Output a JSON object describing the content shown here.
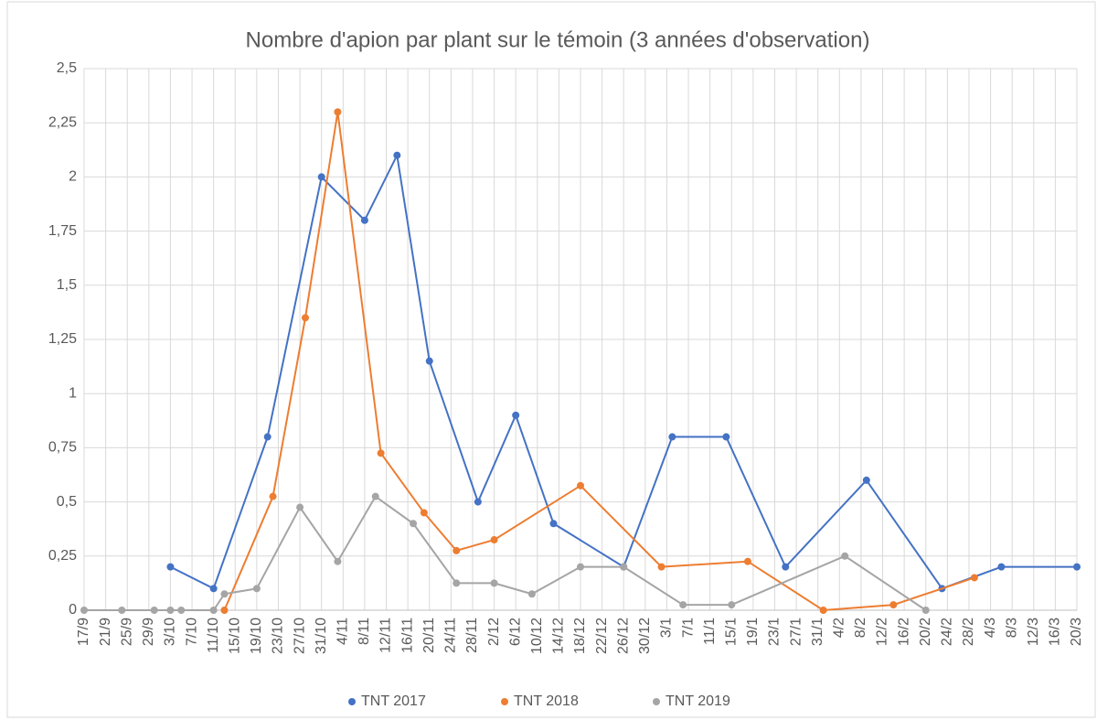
{
  "chart_data": {
    "type": "line",
    "title": "Nombre d'apion par plant sur le témoin (3 années d'observation)",
    "categories": [
      "17/9",
      "21/9",
      "25/9",
      "29/9",
      "3/10",
      "7/10",
      "11/10",
      "15/10",
      "19/10",
      "23/10",
      "27/10",
      "31/10",
      "4/11",
      "8/11",
      "12/11",
      "16/11",
      "20/11",
      "24/11",
      "28/11",
      "2/12",
      "6/12",
      "10/12",
      "14/12",
      "18/12",
      "22/12",
      "26/12",
      "30/12",
      "3/1",
      "7/1",
      "11/1",
      "15/1",
      "19/1",
      "23/1",
      "27/1",
      "31/1",
      "4/2",
      "8/2",
      "12/2",
      "16/2",
      "20/2",
      "24/2",
      "28/2",
      "4/3",
      "8/3",
      "12/3",
      "16/3",
      "20/3"
    ],
    "series": [
      {
        "name": "TNT 2017",
        "color": "#4472c4",
        "x": [
          "3/10",
          "11/10",
          "21/10",
          "31/10",
          "8/11",
          "14/11",
          "20/11",
          "29/11",
          "6/12",
          "13/12",
          "26/12",
          "4/1",
          "14/1",
          "25/1",
          "9/2",
          "23/2",
          "6/3",
          "20/3"
        ],
        "values": [
          0.2,
          0.1,
          0.8,
          2.0,
          1.8,
          2.1,
          1.15,
          0.5,
          0.9,
          0.4,
          0.2,
          0.8,
          0.8,
          0.2,
          0.6,
          0.1,
          0.2,
          0.2
        ]
      },
      {
        "name": "TNT 2018",
        "color": "#ed7d31",
        "x": [
          "13/10",
          "22/10",
          "28/10",
          "3/11",
          "11/11",
          "19/11",
          "25/11",
          "2/12",
          "18/12",
          "2/1",
          "18/1",
          "1/2",
          "14/2",
          "1/3"
        ],
        "values": [
          0,
          0.525,
          1.35,
          2.3,
          0.725,
          0.45,
          0.275,
          0.325,
          0.575,
          0.2,
          0.225,
          0,
          0.025,
          0.15
        ]
      },
      {
        "name": "TNT 2019",
        "color": "#a5a5a5",
        "x": [
          "17/9",
          "24/9",
          "30/9",
          "3/10",
          "5/10",
          "11/10",
          "13/10",
          "19/10",
          "27/10",
          "3/11",
          "10/11",
          "17/11",
          "25/11",
          "2/12",
          "9/12",
          "18/12",
          "26/12",
          "6/1",
          "15/1",
          "5/2",
          "20/2"
        ],
        "values": [
          0,
          0,
          0,
          0,
          0,
          0,
          0.075,
          0.1,
          0.475,
          0.225,
          0.525,
          0.4,
          0.125,
          0.125,
          0.075,
          0.2,
          0.2,
          0.025,
          0.025,
          0.25,
          0
        ]
      }
    ],
    "ylim": [
      0,
      2.5
    ],
    "yticks": [
      0,
      {
        "value": 0.25,
        "label": "0,25"
      },
      {
        "value": 0.5,
        "label": "0,5"
      },
      {
        "value": 0.75,
        "label": "0,75"
      },
      1,
      {
        "value": 1.25,
        "label": "1,25"
      },
      {
        "value": 1.5,
        "label": "1,5"
      },
      {
        "value": 1.75,
        "label": "1,75"
      },
      2,
      {
        "value": 2.25,
        "label": "2,25"
      },
      {
        "value": 2.5,
        "label": "2,5"
      }
    ],
    "grid": true,
    "legend": "bottom"
  }
}
